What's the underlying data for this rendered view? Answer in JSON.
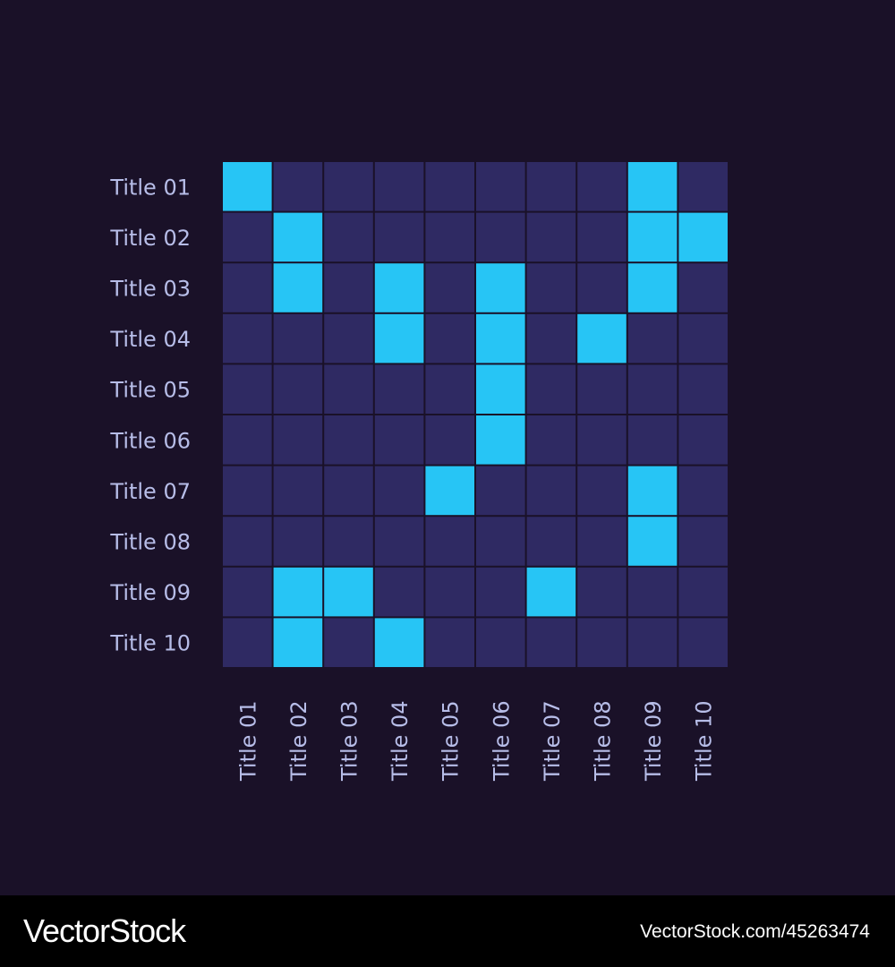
{
  "chart_data": {
    "type": "heatmap",
    "rows": [
      "Title 01",
      "Title 02",
      "Title 03",
      "Title 04",
      "Title 05",
      "Title 06",
      "Title 07",
      "Title 08",
      "Title 09",
      "Title 10"
    ],
    "columns": [
      "Title 01",
      "Title 02",
      "Title 03",
      "Title 04",
      "Title 05",
      "Title 06",
      "Title 07",
      "Title 08",
      "Title 09",
      "Title 10"
    ],
    "values": [
      [
        1,
        0,
        0,
        0,
        0,
        0,
        0,
        0,
        1,
        0
      ],
      [
        0,
        1,
        0,
        0,
        0,
        0,
        0,
        0,
        1,
        1
      ],
      [
        0,
        1,
        0,
        1,
        0,
        1,
        0,
        0,
        1,
        0
      ],
      [
        0,
        0,
        0,
        1,
        0,
        1,
        0,
        1,
        0,
        0
      ],
      [
        0,
        0,
        0,
        0,
        0,
        1,
        0,
        0,
        0,
        0
      ],
      [
        0,
        0,
        0,
        0,
        0,
        1,
        0,
        0,
        0,
        0
      ],
      [
        0,
        0,
        0,
        0,
        1,
        0,
        0,
        0,
        1,
        0
      ],
      [
        0,
        0,
        0,
        0,
        0,
        0,
        0,
        0,
        1,
        0
      ],
      [
        0,
        1,
        1,
        0,
        0,
        0,
        1,
        0,
        0,
        0
      ],
      [
        0,
        1,
        0,
        1,
        0,
        0,
        0,
        0,
        0,
        0
      ]
    ],
    "title": "",
    "xlabel": "",
    "ylabel": "",
    "legend": "none",
    "colors": {
      "on": "#27c5f5",
      "off": "#2f2a63",
      "grid": "#1a1128",
      "label": "#b7bde8",
      "background": "#1a1128"
    }
  },
  "footer": {
    "logo_text": "VectorStock",
    "url_text": "VectorStock.com/45263474"
  }
}
